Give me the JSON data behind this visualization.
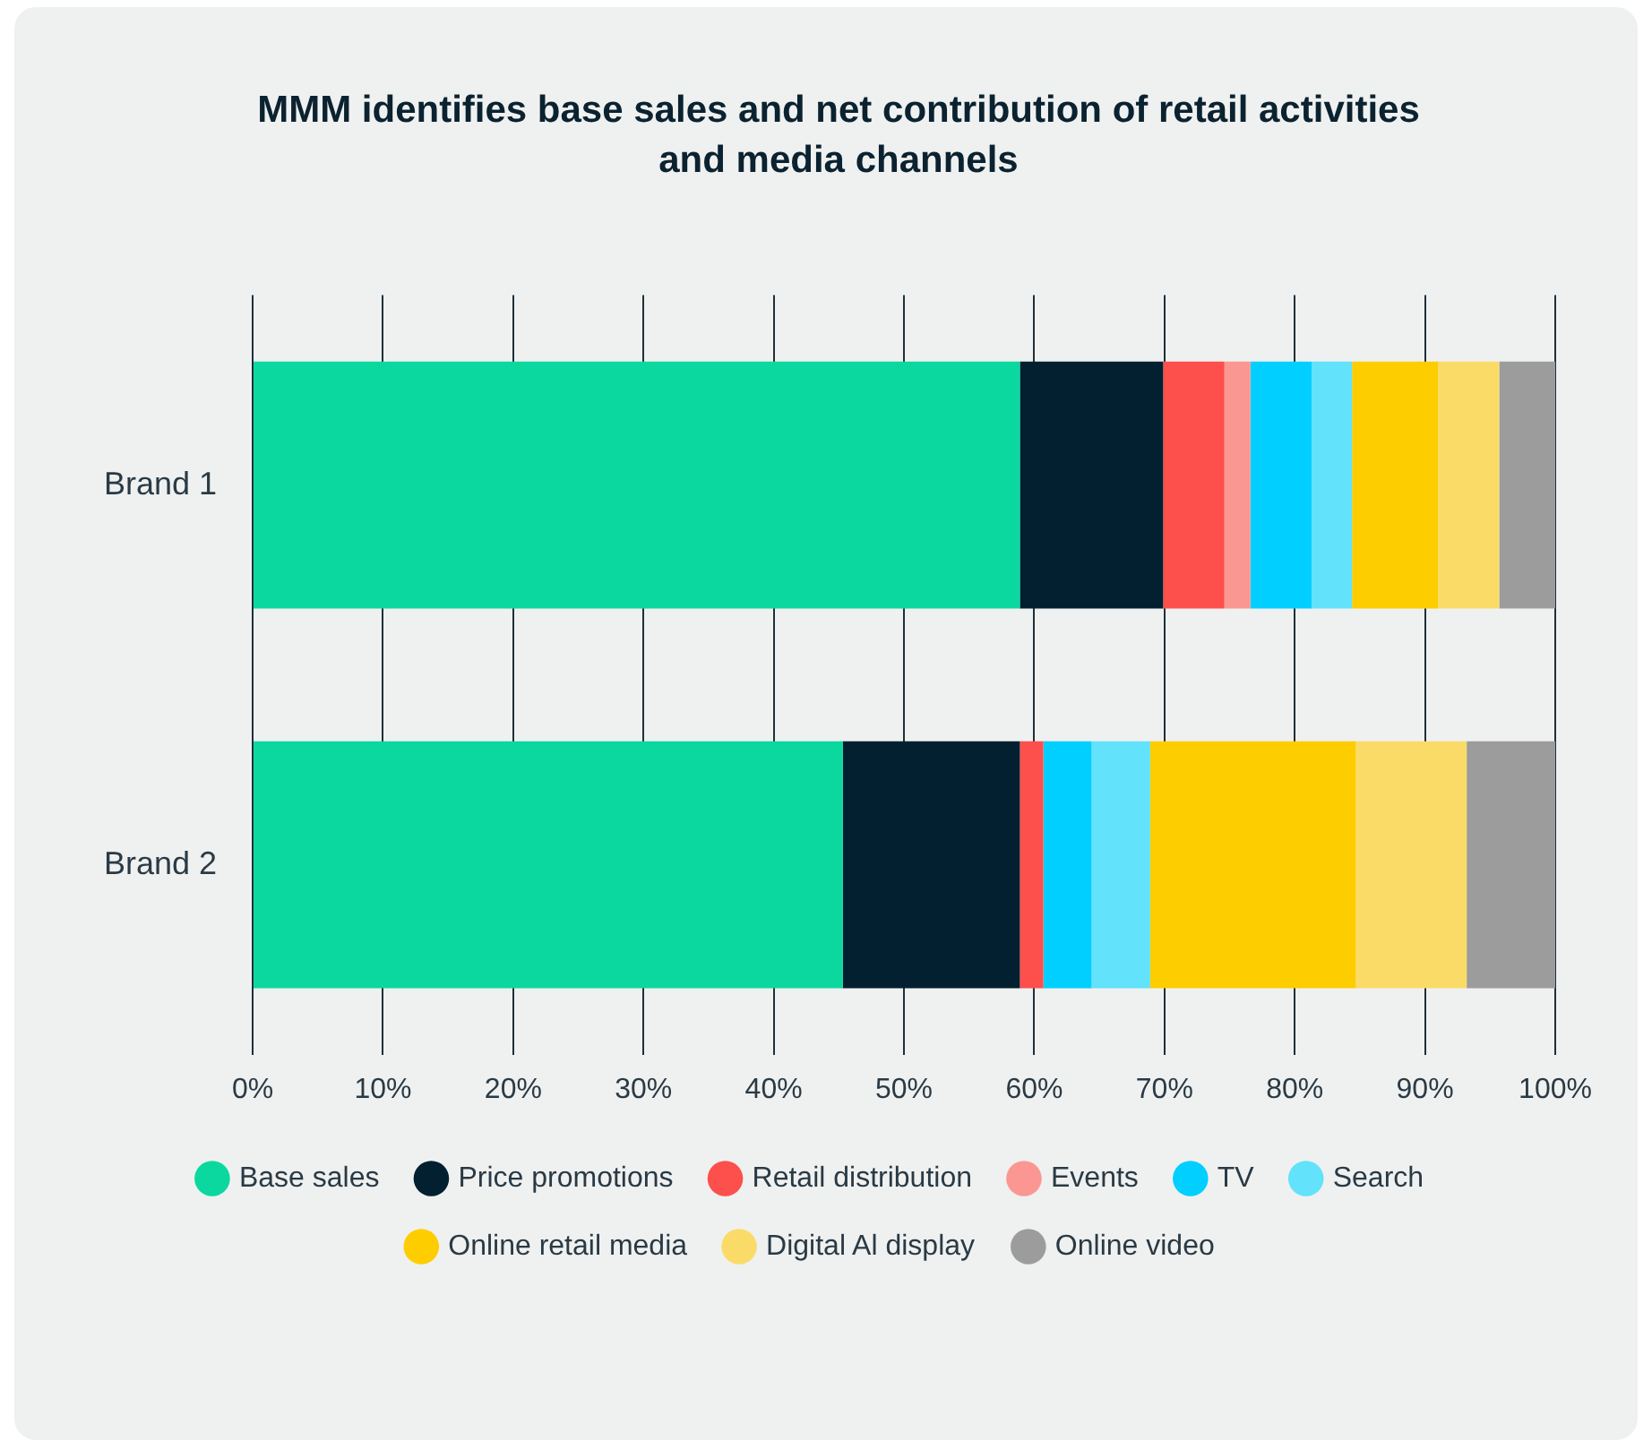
{
  "chart_data": {
    "type": "bar",
    "orientation": "horizontal",
    "stacked": true,
    "title": "MMM identifies base sales and net contribution of retail activities and media channels",
    "categories": [
      "Brand 1",
      "Brand 2"
    ],
    "series": [
      {
        "name": "Base sales",
        "color": "#0bd89e",
        "values": [
          58.9,
          45.3
        ]
      },
      {
        "name": "Price promotions",
        "color": "#02202f",
        "values": [
          11.0,
          13.6
        ]
      },
      {
        "name": "Retail distribution",
        "color": "#fd4f4c",
        "values": [
          4.7,
          1.8
        ]
      },
      {
        "name": "Events",
        "color": "#fb9793",
        "values": [
          2.0,
          0
        ]
      },
      {
        "name": "TV",
        "color": "#00cfff",
        "values": [
          4.7,
          3.7
        ]
      },
      {
        "name": "Search",
        "color": "#62e2fb",
        "values": [
          3.1,
          4.5
        ]
      },
      {
        "name": "Online retail media",
        "color": "#fecd00",
        "values": [
          6.6,
          15.8
        ]
      },
      {
        "name": "Digital Al display",
        "color": "#fbdb68",
        "values": [
          4.7,
          8.5
        ]
      },
      {
        "name": "Online video",
        "color": "#9c9c9c",
        "values": [
          4.3,
          6.8
        ]
      }
    ],
    "xlim": [
      0,
      100
    ],
    "xticks": [
      {
        "value": 0,
        "label": "0%"
      },
      {
        "value": 10,
        "label": "10%"
      },
      {
        "value": 20,
        "label": "20%"
      },
      {
        "value": 30,
        "label": "30%"
      },
      {
        "value": 40,
        "label": "40%"
      },
      {
        "value": 50,
        "label": "50%"
      },
      {
        "value": 60,
        "label": "60%"
      },
      {
        "value": 70,
        "label": "70%"
      },
      {
        "value": 80,
        "label": "80%"
      },
      {
        "value": 90,
        "label": "90%"
      },
      {
        "value": 100,
        "label": "100%"
      }
    ],
    "grid": "x",
    "legend": "bottom",
    "marker": "circle"
  }
}
